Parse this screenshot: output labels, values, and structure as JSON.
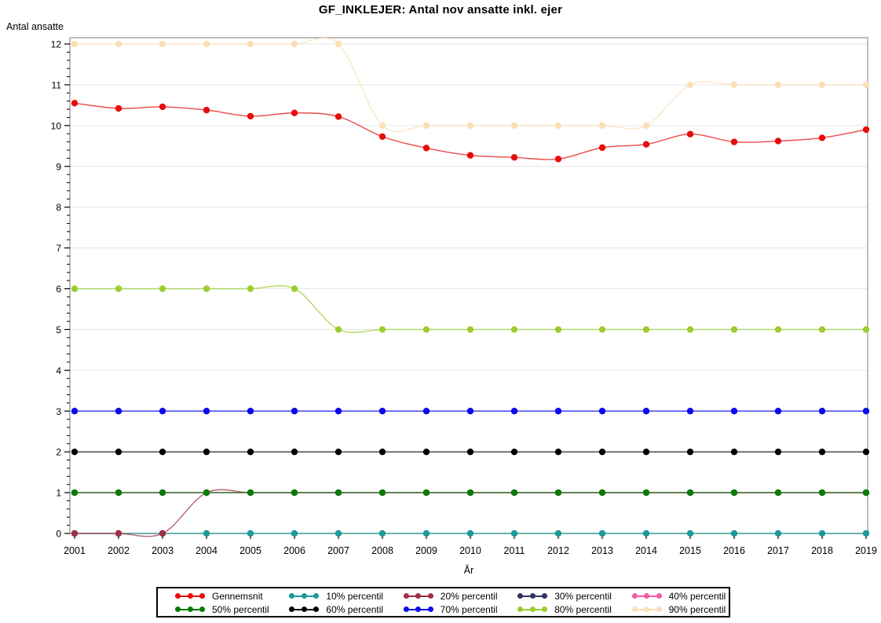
{
  "title": "GF_INKLEJER: Antal nov ansatte inkl. ejer",
  "chart_data": {
    "type": "line",
    "title": "GF_INKLEJER: Antal nov ansatte inkl. ejer",
    "xlabel": "År",
    "ylabel": "Antal ansatte",
    "x": [
      2001,
      2002,
      2003,
      2004,
      2005,
      2006,
      2007,
      2008,
      2009,
      2010,
      2011,
      2012,
      2013,
      2014,
      2015,
      2016,
      2017,
      2018,
      2019
    ],
    "ylim": [
      0,
      12
    ],
    "ytick_step": 1,
    "y_minor_step": 0.2,
    "grid": "horizontal",
    "legend_position": "bottom",
    "series": [
      {
        "name": "Gennemsnit",
        "color": "#E60D0D",
        "values": [
          10.55,
          10.42,
          10.46,
          10.38,
          10.23,
          10.31,
          10.22,
          9.73,
          9.45,
          9.27,
          9.22,
          9.18,
          9.46,
          9.54,
          9.79,
          9.6,
          9.62,
          9.7,
          9.9
        ]
      },
      {
        "name": "10% percentil",
        "color": "#1E9999",
        "values": [
          0,
          0,
          0,
          0,
          0,
          0,
          0,
          0,
          0,
          0,
          0,
          0,
          0,
          0,
          0,
          0,
          0,
          0,
          0
        ]
      },
      {
        "name": "20% percentil",
        "color": "#9E3048",
        "values": [
          0,
          0,
          0,
          1,
          1,
          1,
          1,
          1,
          1,
          1,
          1,
          1,
          1,
          1,
          1,
          1,
          1,
          1,
          1
        ]
      },
      {
        "name": "30% percentil",
        "color": "#333366",
        "values": [
          1,
          1,
          1,
          1,
          1,
          1,
          1,
          1,
          1,
          1,
          1,
          1,
          1,
          1,
          1,
          1,
          1,
          1,
          1
        ]
      },
      {
        "name": "40% percentil",
        "color": "#F45CA2",
        "values": [
          1,
          1,
          1,
          1,
          1,
          1,
          1,
          1,
          1,
          1,
          1,
          1,
          1,
          1,
          1,
          1,
          1,
          1,
          1
        ]
      },
      {
        "name": "50% percentil",
        "color": "#067D06",
        "values": [
          1,
          1,
          1,
          1,
          1,
          1,
          1,
          1,
          1,
          1,
          1,
          1,
          1,
          1,
          1,
          1,
          1,
          1,
          1
        ]
      },
      {
        "name": "60% percentil",
        "color": "#000000",
        "values": [
          2,
          2,
          2,
          2,
          2,
          2,
          2,
          2,
          2,
          2,
          2,
          2,
          2,
          2,
          2,
          2,
          2,
          2,
          2
        ]
      },
      {
        "name": "70% percentil",
        "color": "#0B0BEB",
        "values": [
          3,
          3,
          3,
          3,
          3,
          3,
          3,
          3,
          3,
          3,
          3,
          3,
          3,
          3,
          3,
          3,
          3,
          3,
          3
        ]
      },
      {
        "name": "80% percentil",
        "color": "#9ACD32",
        "values": [
          6,
          6,
          6,
          6,
          6,
          6,
          5,
          5,
          5,
          5,
          5,
          5,
          5,
          5,
          5,
          5,
          5,
          5,
          5
        ]
      },
      {
        "name": "90% percentil",
        "color": "#FBDFB6",
        "values": [
          12,
          12,
          12,
          12,
          12,
          12,
          12,
          10,
          10,
          10,
          10,
          10,
          10,
          10,
          11,
          11,
          11,
          11,
          11
        ]
      }
    ],
    "colors": {
      "grid": "#E6E6E6",
      "frame": "#8F8F8F",
      "tick": "#000000"
    }
  }
}
